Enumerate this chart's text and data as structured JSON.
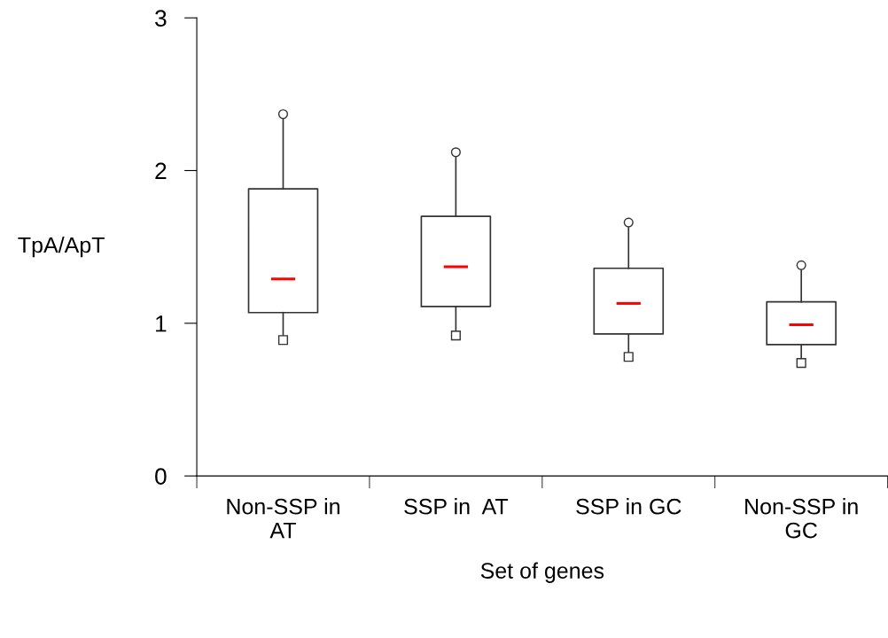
{
  "chart_data": {
    "type": "box",
    "xlabel": "Set of genes",
    "ylabel": "TpA/ApT",
    "categories": [
      "Non-SSP in\nAT",
      "SSP in  AT",
      "SSP in GC",
      "Non-SSP in\nGC"
    ],
    "boxes": [
      {
        "low": 0.89,
        "q1": 1.07,
        "median": 1.29,
        "q3": 1.88,
        "high": 2.37,
        "outliers": [
          0.89,
          2.37
        ]
      },
      {
        "low": 0.92,
        "q1": 1.11,
        "median": 1.37,
        "q3": 1.7,
        "high": 2.12,
        "outliers": [
          0.92,
          2.12
        ]
      },
      {
        "low": 0.78,
        "q1": 0.93,
        "median": 1.13,
        "q3": 1.36,
        "high": 1.66,
        "outliers": [
          0.78,
          1.66
        ]
      },
      {
        "low": 0.74,
        "q1": 0.86,
        "median": 0.99,
        "q3": 1.14,
        "high": 1.38,
        "outliers": [
          0.74,
          1.38
        ]
      }
    ],
    "color": "#333333",
    "ylim": [
      0,
      3
    ],
    "yticks": [
      0,
      1,
      2,
      3
    ],
    "grid": false,
    "legend": false
  }
}
